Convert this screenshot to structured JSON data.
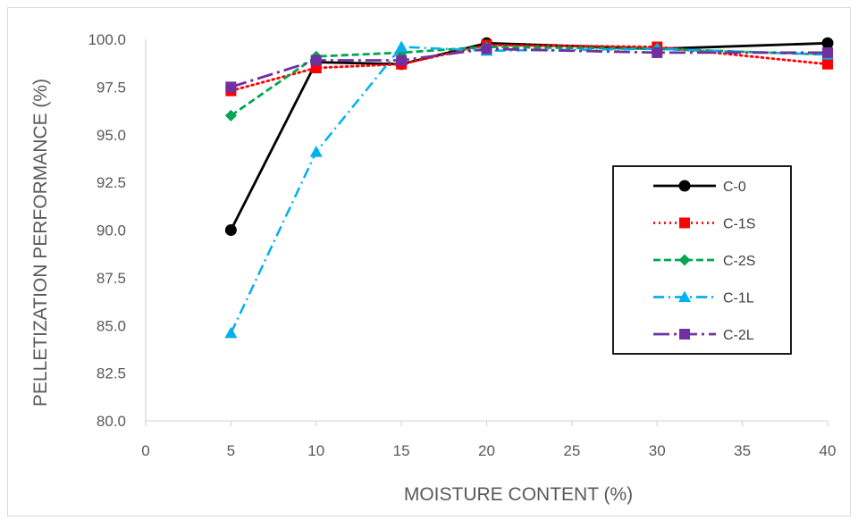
{
  "chart_data": {
    "type": "line",
    "title": "",
    "xlabel": "MOISTURE CONTENT (%)",
    "ylabel": "PELLETIZATION PERFORMANCE (%)",
    "xlim": [
      0,
      40
    ],
    "ylim": [
      80,
      100
    ],
    "x_ticks": [
      "0",
      "5",
      "10",
      "15",
      "20",
      "25",
      "30",
      "35",
      "40"
    ],
    "y_ticks": [
      "80.0",
      "82.5",
      "85.0",
      "87.5",
      "90.0",
      "92.5",
      "95.0",
      "97.5",
      "100.0"
    ],
    "grid": false,
    "legend_position": "right",
    "x": [
      5,
      10,
      15,
      20,
      30,
      40
    ],
    "series": [
      {
        "name": "C-0",
        "values": [
          90.0,
          98.8,
          98.7,
          99.8,
          99.5,
          99.8
        ],
        "color": "#000000",
        "marker": "circle",
        "dash": "solid"
      },
      {
        "name": "C-1S",
        "values": [
          97.3,
          98.5,
          98.7,
          99.7,
          99.6,
          98.7
        ],
        "color": "#ff0000",
        "marker": "square",
        "dash": "dot"
      },
      {
        "name": "C-2S",
        "values": [
          96.0,
          99.1,
          99.3,
          99.6,
          99.5,
          99.2
        ],
        "color": "#00a651",
        "marker": "diamond",
        "dash": "dash"
      },
      {
        "name": "C-1L",
        "values": [
          84.6,
          94.1,
          99.6,
          99.4,
          99.5,
          99.2
        ],
        "color": "#00b0f0",
        "marker": "triangle",
        "dash": "dashdot"
      },
      {
        "name": "C-2L",
        "values": [
          97.5,
          98.9,
          98.9,
          99.5,
          99.3,
          99.3
        ],
        "color": "#7030a0",
        "marker": "square",
        "dash": "longdashdot"
      }
    ]
  }
}
